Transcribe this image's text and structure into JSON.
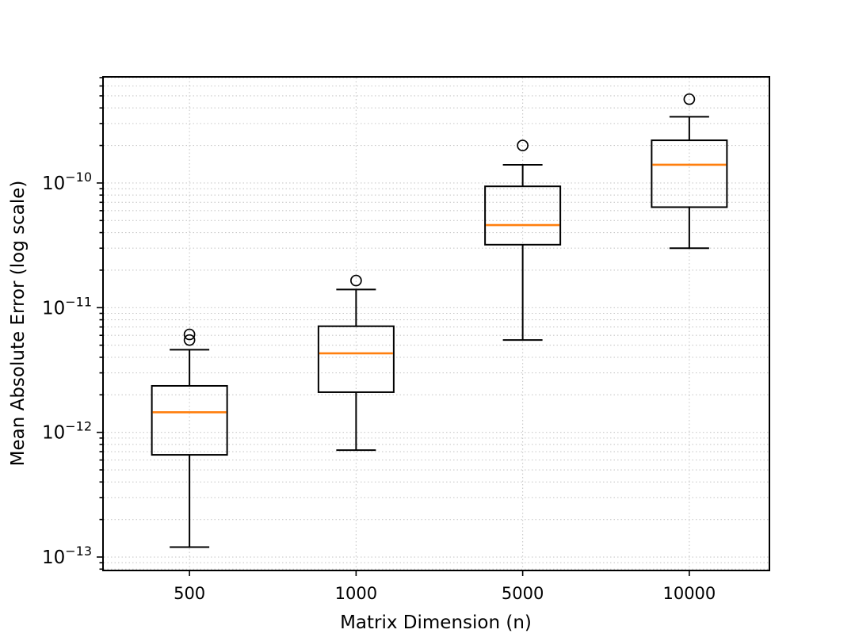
{
  "figure": {
    "title": "",
    "xlabel": "Matrix Dimension (n)",
    "ylabel": "Mean Absolute Error (log scale)"
  },
  "chart_data": {
    "type": "box",
    "title": "",
    "xlabel": "Matrix Dimension (n)",
    "ylabel": "Mean Absolute Error (log scale)",
    "y_scale": "log",
    "ylim": [
      7.8e-14,
      7.1e-10
    ],
    "grid": {
      "which": "both",
      "style": "dotted",
      "color": "#c9c9c9"
    },
    "legend": null,
    "colors": {
      "box_edge": "#000000",
      "median": "#ff7f0e",
      "whisker": "#000000",
      "outlier_edge": "#000000",
      "background": "#ffffff"
    },
    "categories": [
      "500",
      "1000",
      "5000",
      "10000"
    ],
    "y_major_ticks": [
      1e-13,
      1e-12,
      1e-11,
      1e-10
    ],
    "y_tick_labels": [
      {
        "base": "10",
        "exp": "−13"
      },
      {
        "base": "10",
        "exp": "−12"
      },
      {
        "base": "10",
        "exp": "−11"
      },
      {
        "base": "10",
        "exp": "−10"
      }
    ],
    "series": [
      {
        "category": "500",
        "whisker_low": 1.2e-13,
        "q1": 6.6e-13,
        "median": 1.45e-12,
        "q3": 2.36e-12,
        "whisker_high": 4.6e-12,
        "outliers": [
          5.5e-12,
          6.1e-12
        ]
      },
      {
        "category": "1000",
        "whisker_low": 7.2e-13,
        "q1": 2.1e-12,
        "median": 4.3e-12,
        "q3": 7.1e-12,
        "whisker_high": 1.4e-11,
        "outliers": [
          1.65e-11
        ]
      },
      {
        "category": "5000",
        "whisker_low": 5.5e-12,
        "q1": 3.2e-11,
        "median": 4.6e-11,
        "q3": 9.4e-11,
        "whisker_high": 1.4e-10,
        "outliers": [
          2e-10
        ]
      },
      {
        "category": "10000",
        "whisker_low": 3e-11,
        "q1": 6.4e-11,
        "median": 1.4e-10,
        "q3": 2.2e-10,
        "whisker_high": 3.4e-10,
        "outliers": [
          4.7e-10
        ]
      }
    ]
  }
}
